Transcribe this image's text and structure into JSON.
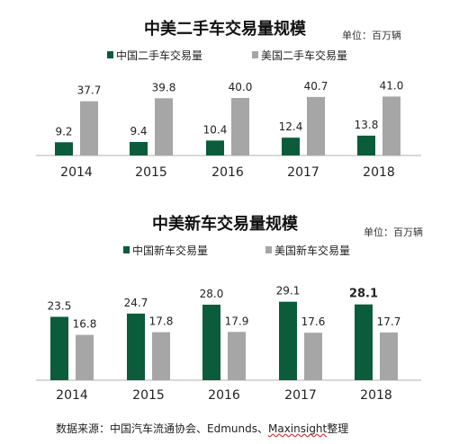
{
  "chart_data": [
    {
      "type": "bar",
      "title": "中美二手车交易量规模",
      "unit_label": "单位：百万辆",
      "categories": [
        "2014",
        "2015",
        "2016",
        "2017",
        "2018"
      ],
      "series": [
        {
          "name": "中国二手车交易量",
          "color": "#0a5c3a",
          "values": [
            9.2,
            9.4,
            10.4,
            12.4,
            13.8
          ],
          "labels": [
            "9.2",
            "9.4",
            "10.4",
            "12.4",
            "13.8"
          ]
        },
        {
          "name": "美国二手车交易量",
          "color": "#a6a6a6",
          "values": [
            37.7,
            39.8,
            40.0,
            40.7,
            41.0
          ],
          "labels": [
            "37.7",
            "39.8",
            "40.0",
            "40.7",
            "41.0"
          ]
        }
      ],
      "legend_position": "top",
      "grid": false
    },
    {
      "type": "bar",
      "title": "中美新车交易量规模",
      "unit_label": "单位：百万辆",
      "categories": [
        "2014",
        "2015",
        "2016",
        "2017",
        "2018"
      ],
      "series": [
        {
          "name": "中国新车交易量",
          "color": "#0a5c3a",
          "values": [
            23.5,
            24.7,
            28.0,
            29.1,
            28.1
          ],
          "labels": [
            "23.5",
            "24.7",
            "28.0",
            "29.1",
            "28.1"
          ]
        },
        {
          "name": "美国新车交易量",
          "color": "#a6a6a6",
          "values": [
            16.8,
            17.8,
            17.9,
            17.6,
            17.7
          ],
          "labels": [
            "16.8",
            "17.8",
            "17.9",
            "17.6",
            "17.7"
          ]
        }
      ],
      "legend_position": "top",
      "grid": false,
      "bold_labels": [
        "28.1"
      ]
    }
  ],
  "source": {
    "text": "数据来源：中国汽车流通协会、Edmunds、",
    "underlined": "Maxinsight",
    "suffix": "整理"
  }
}
